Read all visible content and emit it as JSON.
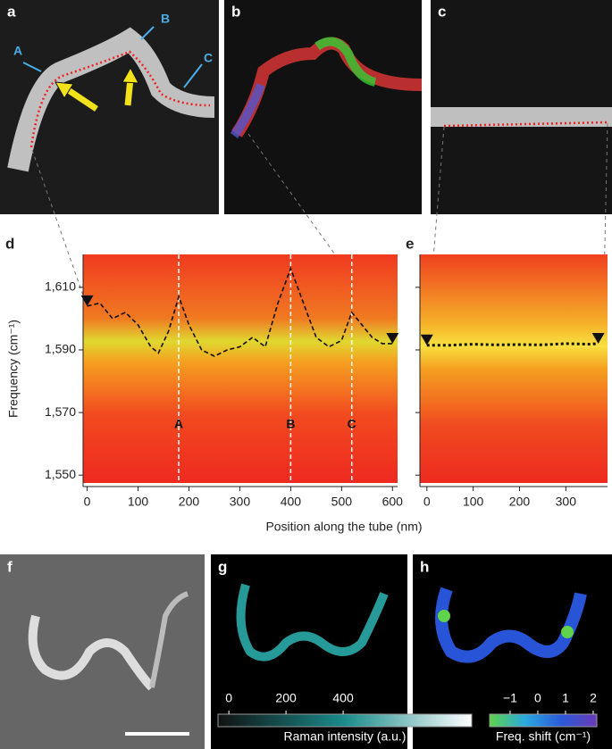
{
  "figure": {
    "panel_labels": [
      "a",
      "b",
      "c",
      "d",
      "e",
      "f",
      "g",
      "h"
    ],
    "panel_a_annotations": [
      "A",
      "B",
      "C"
    ]
  },
  "chart_data": [
    {
      "type": "line",
      "ylabel": "Frequency (cm⁻¹)",
      "xlabel": "Position along the tube (nm)",
      "x": [
        0,
        25,
        50,
        75,
        100,
        125,
        140,
        160,
        180,
        200,
        225,
        250,
        275,
        300,
        325,
        350,
        375,
        400,
        425,
        450,
        475,
        500,
        520,
        540,
        560,
        580,
        600
      ],
      "series": [
        {
          "color": "#111111",
          "values": [
            1604,
            1605,
            1600,
            1602,
            1598,
            1591,
            1589,
            1596,
            1607,
            1598,
            1590,
            1588,
            1590,
            1591,
            1594,
            1591,
            1605,
            1616,
            1605,
            1594,
            1591,
            1593,
            1602,
            1598,
            1594,
            1592,
            1592
          ]
        }
      ],
      "xlim": [
        -8,
        610
      ],
      "xticks": [
        0,
        100,
        200,
        300,
        400,
        500,
        600
      ],
      "ylim": [
        1547.5,
        1620.5
      ],
      "yticks": [
        {
          "value": 1550,
          "label": "1,550"
        },
        {
          "value": 1570,
          "label": "1,570"
        },
        {
          "value": 1590,
          "label": "1,590"
        },
        {
          "value": 1610,
          "label": "1,610"
        }
      ],
      "markers": [
        {
          "label": "A",
          "x": 180
        },
        {
          "label": "B",
          "x": 400
        },
        {
          "label": "C",
          "x": 520
        }
      ]
    },
    {
      "type": "line",
      "x": [
        0,
        50,
        100,
        150,
        200,
        250,
        300,
        350,
        370
      ],
      "series": [
        {
          "color": "#111111",
          "values": [
            1591.5,
            1591.5,
            1591.8,
            1591.6,
            1591.7,
            1591.6,
            1592,
            1591.8,
            1592
          ]
        }
      ],
      "xlim": [
        -15,
        390
      ],
      "xticks": [
        0,
        100,
        200,
        300
      ],
      "ylim": [
        1547.5,
        1620.5
      ],
      "yticks": [
        1550,
        1570,
        1590,
        1610
      ]
    },
    {
      "type": "colorbar",
      "xlabel": "Raman intensity (a.u.)",
      "xlim": [
        -38,
        850
      ],
      "xticks": [
        0,
        200,
        400
      ],
      "colors": [
        "#111111",
        "#1a8c8c",
        "#ffffff"
      ]
    },
    {
      "type": "colorbar",
      "xlabel": "Freq. shift (cm⁻¹)",
      "xlim": [
        -1.74,
        2.13
      ],
      "xticks": [
        {
          "value": -1,
          "label": "−1"
        },
        0,
        1,
        2
      ],
      "colors": [
        "#5fd34a",
        "#2aa8e0",
        "#2a5ad8",
        "#6a3ab8"
      ]
    }
  ]
}
